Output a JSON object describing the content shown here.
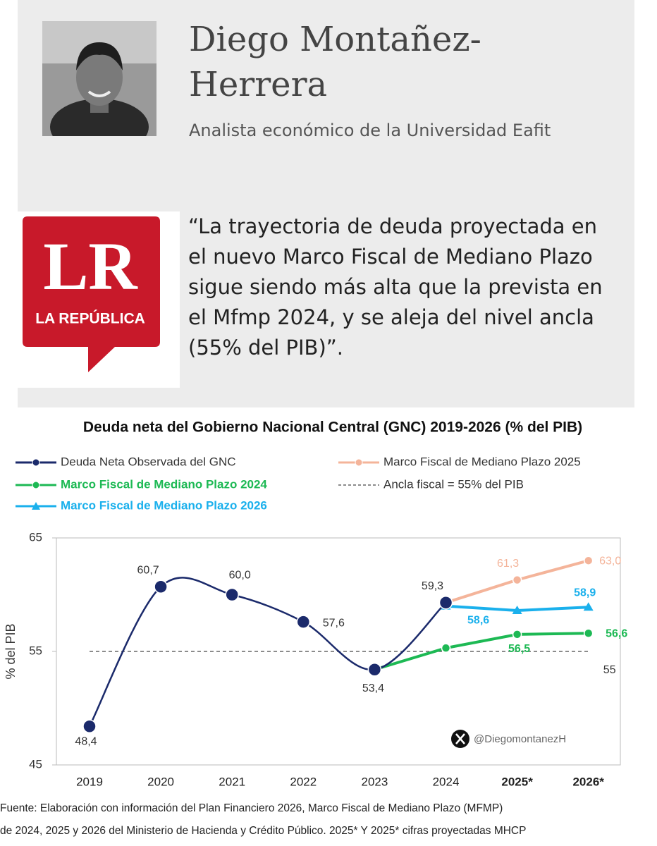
{
  "profile": {
    "name": "Diego Montañez-Herrera",
    "role": "Analista económico de la Universidad Eafit"
  },
  "logo": {
    "letters": "LR",
    "name": "LA REPÚBLICA"
  },
  "quote": "“La trayectoria de deuda proyectada en el nuevo Marco Fiscal de Mediano Plazo sigue siendo más alta que la prevista en el Mfmp 2024, y se aleja del nivel ancla (55% del PIB)”.",
  "chart_data": {
    "type": "line",
    "title": "Deuda neta del Gobierno Nacional Central (GNC) 2019-2026 (% del PIB)",
    "ylabel": "% del PIB",
    "categories": [
      "2019",
      "2020",
      "2021",
      "2022",
      "2023",
      "2024",
      "2025*",
      "2026*"
    ],
    "ylim": [
      45,
      65
    ],
    "yticks": [
      45,
      55,
      65
    ],
    "series": [
      {
        "name": "Deuda Neta Observada del GNC",
        "color": "#1b2a6b",
        "marker": "circle",
        "smooth": true,
        "bold": false,
        "values": [
          48.4,
          60.7,
          60.0,
          57.6,
          53.4,
          59.3,
          null,
          null
        ],
        "value_labels": [
          "48,4",
          "60,7",
          "60,0",
          "57,6",
          "53,4",
          "59,3",
          null,
          null
        ]
      },
      {
        "name": "Marco Fiscal de Mediano Plazo 2025",
        "color": "#f4b49a",
        "marker": "circle",
        "smooth": false,
        "bold": false,
        "values": [
          null,
          null,
          null,
          null,
          null,
          59.3,
          61.3,
          63.0
        ],
        "value_labels": [
          null,
          null,
          null,
          null,
          null,
          null,
          "61,3",
          "63,0"
        ]
      },
      {
        "name": "Marco Fiscal de Mediano Plazo 2024",
        "color": "#1db954",
        "marker": "circle",
        "smooth": false,
        "bold": true,
        "values": [
          null,
          null,
          null,
          null,
          53.4,
          55.3,
          56.5,
          56.6
        ],
        "value_labels": [
          null,
          null,
          null,
          null,
          null,
          null,
          "56,5",
          "56,6"
        ]
      },
      {
        "name": "Ancla fiscal = 55% del PIB",
        "color": "#666666",
        "marker": "none",
        "dashed": true,
        "smooth": false,
        "bold": false,
        "values": [
          55,
          55,
          55,
          55,
          55,
          55,
          55,
          55
        ],
        "value_labels": [
          null,
          null,
          null,
          null,
          null,
          null,
          null,
          "55"
        ]
      },
      {
        "name": "Marco Fiscal de Mediano Plazo 2026",
        "color": "#1ab0ec",
        "marker": "triangle",
        "smooth": false,
        "bold": true,
        "values": [
          null,
          null,
          null,
          null,
          null,
          59.0,
          58.6,
          58.9
        ],
        "value_labels": [
          null,
          null,
          null,
          null,
          null,
          null,
          "58,6",
          "58,9"
        ]
      }
    ],
    "watermark": "@DiegomontanezH"
  },
  "source": [
    "Fuente: Elaboración con información del Plan Financiero 2026, Marco Fiscal de Mediano Plazo (MFMP)",
    "de 2024, 2025 y 2026 del Ministerio de Hacienda y Crédito Público. 2025* Y 2025* cifras proyectadas MHCP"
  ]
}
